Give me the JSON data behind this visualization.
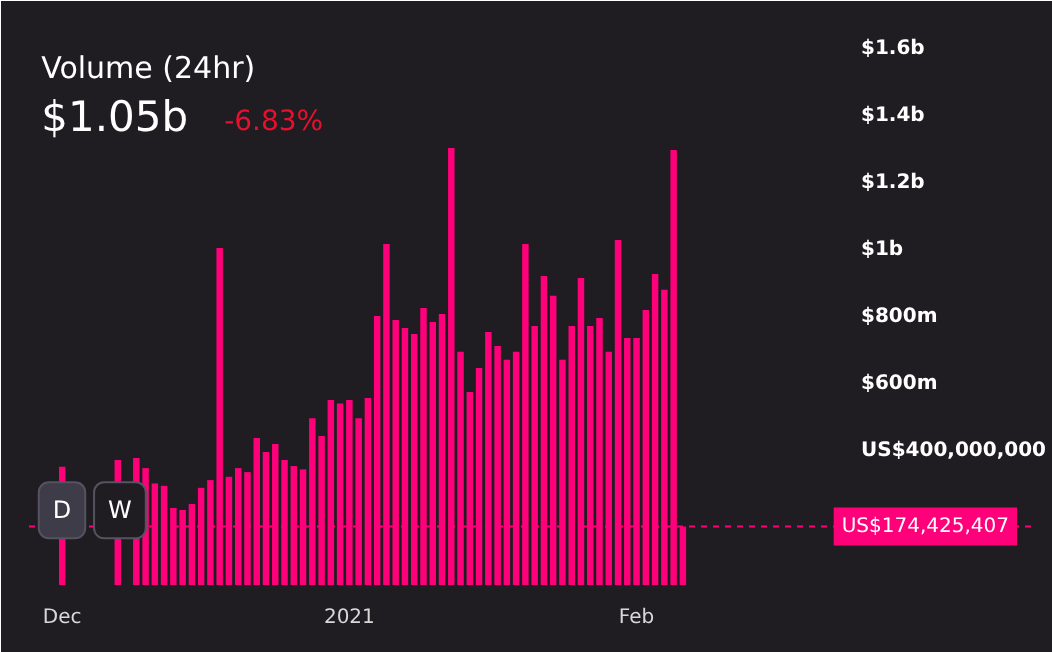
{
  "chart_data": {
    "type": "bar",
    "title": "Volume (24hr)",
    "subtitle": "$1.05b",
    "annotations": [
      "-6.83%",
      "D",
      "W"
    ],
    "x": [
      "2020-12-01",
      "2020-12-02",
      "2020-12-03",
      "2020-12-04",
      "2020-12-05",
      "2020-12-06",
      "2020-12-07",
      "2020-12-08",
      "2020-12-09",
      "2020-12-10",
      "2020-12-11",
      "2020-12-12",
      "2020-12-13",
      "2020-12-14",
      "2020-12-15",
      "2020-12-16",
      "2020-12-17",
      "2020-12-18",
      "2020-12-19",
      "2020-12-20",
      "2020-12-21",
      "2020-12-22",
      "2020-12-23",
      "2020-12-24",
      "2020-12-25",
      "2020-12-26",
      "2020-12-27",
      "2020-12-28",
      "2020-12-29",
      "2020-12-30",
      "2020-12-31",
      "2021-01-01",
      "2021-01-02",
      "2021-01-03",
      "2021-01-04",
      "2021-01-05",
      "2021-01-06",
      "2021-01-07",
      "2021-01-08",
      "2021-01-09",
      "2021-01-10",
      "2021-01-11",
      "2021-01-12",
      "2021-01-13",
      "2021-01-14",
      "2021-01-15",
      "2021-01-16",
      "2021-01-17",
      "2021-01-18",
      "2021-01-19",
      "2021-01-20",
      "2021-01-21",
      "2021-01-22",
      "2021-01-23",
      "2021-01-24",
      "2021-01-25",
      "2021-01-26",
      "2021-01-27",
      "2021-01-28",
      "2021-01-29",
      "2021-01-30",
      "2021-01-31",
      "2021-02-01",
      "2021-02-02",
      "2021-02-03",
      "2021-02-04",
      "2021-02-05",
      "2021-02-06"
    ],
    "series": [
      {
        "color": "#ff007a",
        "values": [
          353000000,
          null,
          null,
          null,
          null,
          null,
          373000000,
          null,
          379000000,
          349000000,
          303000000,
          296000000,
          230000000,
          224000000,
          242000000,
          290000000,
          313000000,
          1006000000,
          323000000,
          349000000,
          337000000,
          439000000,
          397000000,
          421000000,
          373000000,
          355000000,
          345000000,
          498000000,
          445000000,
          552000000,
          542000000,
          552000000,
          498000000,
          558000000,
          803000000,
          1018000000,
          791000000,
          767000000,
          749000000,
          827000000,
          785000000,
          809000000,
          1304000000,
          696000000,
          576000000,
          648000000,
          755000000,
          713000000,
          672000000,
          696000000,
          1018000000,
          773000000,
          922000000,
          863000000,
          672000000,
          773000000,
          916000000,
          773000000,
          797000000,
          696000000,
          1030000000,
          737000000,
          737000000,
          821000000,
          928000000,
          881000000,
          1298000000,
          174425407
        ]
      }
    ],
    "xlim": [
      "2020-11-27T10:00",
      "2021-03-15T19:00"
    ],
    "xticks": [
      {
        "value": "2020-12-01",
        "label": "Dec"
      },
      {
        "value": "2021-01-01",
        "label": "2021"
      },
      {
        "value": "2021-02-01",
        "label": "Feb"
      }
    ],
    "ylim": [
      0,
      1743000000
    ],
    "yticks": [
      {
        "value": 400000000,
        "label": "US$400,000,000"
      },
      {
        "value": 600000000,
        "label": "$600m"
      },
      {
        "value": 800000000,
        "label": "$800m"
      },
      {
        "value": 1000000000,
        "label": "$1b"
      },
      {
        "value": 1200000000,
        "label": "$1.2b"
      },
      {
        "value": 1400000000,
        "label": "$1.4b"
      },
      {
        "value": 1600000000,
        "label": "$1.6b"
      }
    ],
    "ref_lines": [
      {
        "axis": "y",
        "value": 174425407,
        "label": "US$174,425,407",
        "color": "#ff007a",
        "line_style": "dashed"
      }
    ],
    "grid": false
  }
}
